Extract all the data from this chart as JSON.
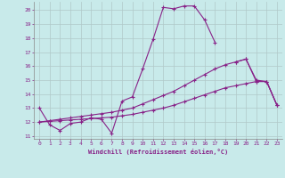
{
  "xlabel": "Windchill (Refroidissement éolien,°C)",
  "background_color": "#c8eaea",
  "grid_color": "#b0c8c8",
  "line_color": "#882288",
  "xlim": [
    -0.5,
    23.5
  ],
  "ylim": [
    10.8,
    20.6
  ],
  "yticks": [
    11,
    12,
    13,
    14,
    15,
    16,
    17,
    18,
    19,
    20
  ],
  "xticks": [
    0,
    1,
    2,
    3,
    4,
    5,
    6,
    7,
    8,
    9,
    10,
    11,
    12,
    13,
    14,
    15,
    16,
    17,
    18,
    19,
    20,
    21,
    22,
    23
  ],
  "line1_x": [
    0,
    1,
    2,
    3,
    4,
    5,
    6,
    7,
    8,
    9,
    10,
    11,
    12,
    13,
    14,
    15,
    16,
    17
  ],
  "line1_y": [
    13.0,
    11.8,
    11.4,
    11.9,
    12.0,
    12.3,
    12.2,
    11.2,
    13.5,
    13.8,
    15.8,
    17.9,
    20.2,
    20.1,
    20.3,
    20.3,
    19.3,
    17.7
  ],
  "line2_x": [
    19,
    20,
    21,
    22,
    23
  ],
  "line2_y": [
    16.3,
    16.5,
    14.9,
    14.9,
    13.2
  ],
  "line3_x": [
    0,
    1,
    2,
    3,
    4,
    5,
    6,
    7,
    8,
    9,
    10,
    11,
    12,
    13,
    14,
    15,
    16,
    17,
    18,
    19,
    20,
    21,
    22,
    23
  ],
  "line3_y": [
    12.0,
    12.1,
    12.2,
    12.3,
    12.4,
    12.5,
    12.6,
    12.7,
    12.85,
    13.0,
    13.3,
    13.6,
    13.9,
    14.2,
    14.6,
    15.0,
    15.4,
    15.8,
    16.1,
    16.3,
    16.5,
    15.0,
    14.9,
    13.2
  ],
  "line4_x": [
    0,
    1,
    2,
    3,
    4,
    5,
    6,
    7,
    8,
    9,
    10,
    11,
    12,
    13,
    14,
    15,
    16,
    17,
    18,
    19,
    20,
    21,
    22,
    23
  ],
  "line4_y": [
    12.0,
    12.05,
    12.1,
    12.15,
    12.2,
    12.25,
    12.3,
    12.35,
    12.45,
    12.55,
    12.7,
    12.85,
    13.0,
    13.2,
    13.45,
    13.7,
    13.95,
    14.2,
    14.45,
    14.6,
    14.75,
    14.9,
    14.9,
    13.2
  ]
}
